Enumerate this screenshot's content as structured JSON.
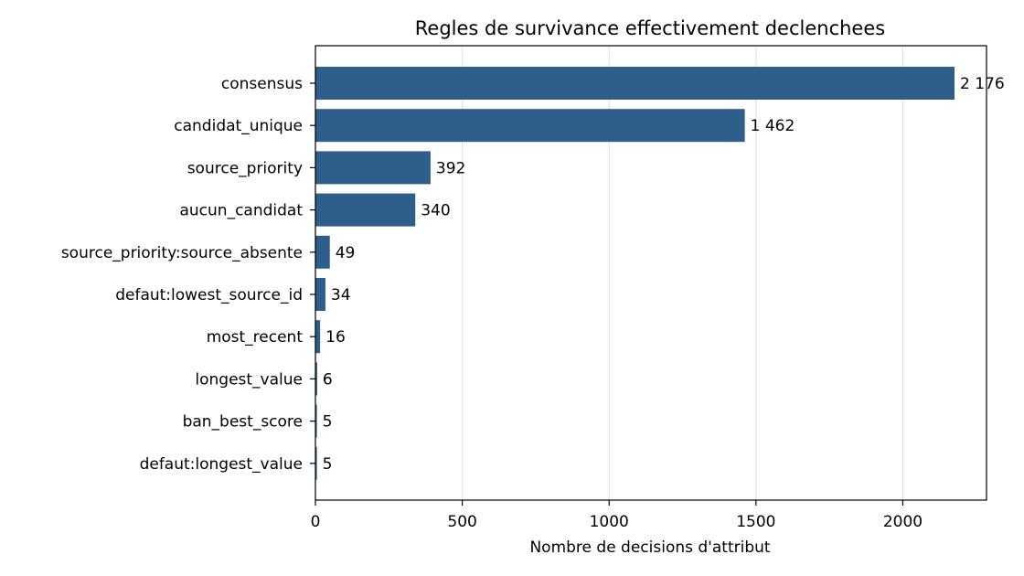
{
  "chart_data": {
    "type": "bar",
    "orientation": "horizontal",
    "title": "Regles de survivance effectivement declenchees",
    "xlabel": "Nombre de decisions d'attribut",
    "ylabel": "",
    "xlim": [
      0,
      2285
    ],
    "xticks": [
      0,
      500,
      1000,
      1500,
      2000
    ],
    "grid": "vertical",
    "bar_color": "#2e5e8a",
    "categories": [
      "consensus",
      "candidat_unique",
      "source_priority",
      "aucun_candidat",
      "source_priority:source_absente",
      "defaut:lowest_source_id",
      "most_recent",
      "longest_value",
      "ban_best_score",
      "defaut:longest_value"
    ],
    "values": [
      2176,
      1462,
      392,
      340,
      49,
      34,
      16,
      6,
      5,
      5
    ],
    "value_labels": [
      "2 176",
      "1 462",
      "392",
      "340",
      "49",
      "34",
      "16",
      "6",
      "5",
      "5"
    ]
  }
}
